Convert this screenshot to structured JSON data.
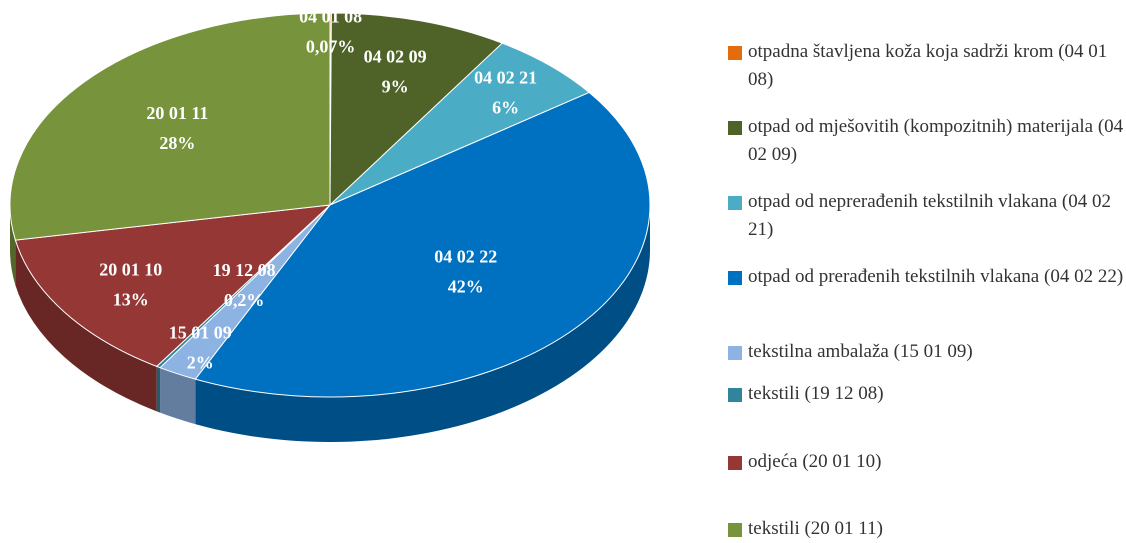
{
  "chart_data": {
    "type": "pie",
    "categories": [
      "otpadna štavljena koža koja sadrži krom (04 01 08)",
      "otpad od mješovitih (kompozitnih) materijala (04 02 09)",
      "otpad od neprerađenih tekstilnih vlakana (04 02 21)",
      "otpad od prerađenih tekstilnih vlakana (04 02 22)",
      "tekstilna ambalaža (15 01 09)",
      "tekstili (19 12 08)",
      "odjeća (20 01 10)",
      "tekstili (20 01 11)"
    ],
    "codes": [
      "04 01 08",
      "04 02 09",
      "04 02 21",
      "04 02 22",
      "15 01 09",
      "19 12 08",
      "20 01 10",
      "20 01 11"
    ],
    "values": [
      0.07,
      9,
      6,
      42,
      2,
      0.2,
      13,
      28
    ],
    "value_labels": [
      "0,07%",
      "9%",
      "6%",
      "42%",
      "2%",
      "0,2%",
      "13%",
      "28%"
    ],
    "colors": [
      "#e46c0a",
      "#4f6228",
      "#4bacc6",
      "#0070c0",
      "#8db3e2",
      "#31849b",
      "#953735",
      "#77933c"
    ]
  }
}
